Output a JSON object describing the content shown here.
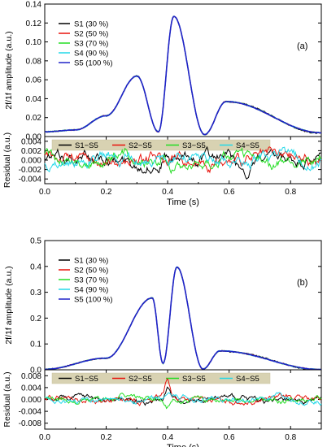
{
  "chart_data": [
    {
      "type": "line",
      "panel_label": "(a)",
      "ylabel": "2f/1f amplitude (a.u.)",
      "ylim": [
        0.0,
        0.14
      ],
      "yticks": [
        "0.00",
        "0.02",
        "0.04",
        "0.06",
        "0.08",
        "0.10",
        "0.12",
        "0.14"
      ],
      "xlim": [
        0.0,
        0.9
      ],
      "legend_position": "top-left",
      "series": [
        {
          "name": "S1 (30 %)",
          "color": "#000000"
        },
        {
          "name": "S2 (50 %)",
          "color": "#e8120b"
        },
        {
          "name": "S3 (70 %)",
          "color": "#22dd22"
        },
        {
          "name": "S4 (90 %)",
          "color": "#22d8e8"
        },
        {
          "name": "S5 (100 %)",
          "color": "#1f22c8"
        }
      ],
      "peaks": [
        {
          "x": 0.0,
          "y": 0.005
        },
        {
          "x": 0.1,
          "y": 0.007
        },
        {
          "x": 0.2,
          "y": 0.022
        },
        {
          "x": 0.3,
          "y": 0.064
        },
        {
          "x": 0.37,
          "y": 0.005
        },
        {
          "x": 0.42,
          "y": 0.127
        },
        {
          "x": 0.52,
          "y": 0.002
        },
        {
          "x": 0.59,
          "y": 0.037
        },
        {
          "x": 0.9,
          "y": 0.004
        }
      ]
    },
    {
      "type": "line",
      "ylabel": "Residual (a.u.)",
      "ylim": [
        -0.005,
        0.005
      ],
      "yticks": [
        "-0.004",
        "-0.002",
        "0.000",
        "0.002",
        "0.004"
      ],
      "xlabel": "Time (s)",
      "xlim": [
        0.0,
        0.9
      ],
      "xticks": [
        "0.0",
        "0.2",
        "0.4",
        "0.6",
        "0.8"
      ],
      "legend_position": "top",
      "series": [
        {
          "name": "S1−S5",
          "color": "#000000"
        },
        {
          "name": "S2−S5",
          "color": "#e8120b"
        },
        {
          "name": "S3−S5",
          "color": "#22dd22"
        },
        {
          "name": "S4−S5",
          "color": "#22d8e8"
        }
      ]
    },
    {
      "type": "line",
      "panel_label": "(b)",
      "ylabel": "2f/1f amplitude (a.u.)",
      "ylim": [
        0.0,
        0.5
      ],
      "yticks": [
        "0.0",
        "0.1",
        "0.2",
        "0.3",
        "0.4",
        "0.5"
      ],
      "xlim": [
        0.0,
        0.9
      ],
      "legend_position": "top-left",
      "series": [
        {
          "name": "S1 (30 %)",
          "color": "#000000"
        },
        {
          "name": "S2 (50 %)",
          "color": "#e8120b"
        },
        {
          "name": "S3 (70 %)",
          "color": "#22dd22"
        },
        {
          "name": "S4 (90 %)",
          "color": "#22d8e8"
        },
        {
          "name": "S5 (100 %)",
          "color": "#1f22c8"
        }
      ],
      "peaks": [
        {
          "x": 0.0,
          "y": 0.002
        },
        {
          "x": 0.2,
          "y": 0.045
        },
        {
          "x": 0.35,
          "y": 0.278
        },
        {
          "x": 0.385,
          "y": 0.025
        },
        {
          "x": 0.43,
          "y": 0.397
        },
        {
          "x": 0.515,
          "y": 0.003
        },
        {
          "x": 0.57,
          "y": 0.073
        },
        {
          "x": 0.9,
          "y": 0.001
        }
      ]
    },
    {
      "type": "line",
      "ylabel": "Residual (a.u.)",
      "ylim": [
        -0.01,
        0.01
      ],
      "yticks": [
        "-0.008",
        "-0.004",
        "0.000",
        "0.004",
        "0.008"
      ],
      "xlabel": "Time (s)",
      "xlim": [
        0.0,
        0.9
      ],
      "xticks": [
        "0.0",
        "0.2",
        "0.4",
        "0.6",
        "0.8"
      ],
      "legend_position": "top",
      "series": [
        {
          "name": "S1−S5",
          "color": "#000000"
        },
        {
          "name": "S2−S5",
          "color": "#e8120b"
        },
        {
          "name": "S3−S5",
          "color": "#22dd22"
        },
        {
          "name": "S4−S5",
          "color": "#22d8e8"
        }
      ]
    }
  ]
}
